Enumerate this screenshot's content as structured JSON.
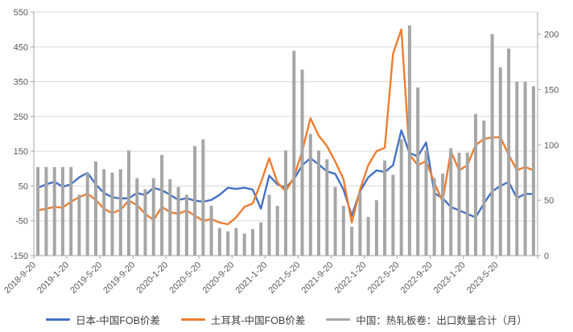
{
  "chart_data": {
    "type": "combo",
    "title": "",
    "x_monthly": [
      "2018-09",
      "2018-10",
      "2018-11",
      "2018-12",
      "2019-01",
      "2019-02",
      "2019-03",
      "2019-04",
      "2019-05",
      "2019-06",
      "2019-07",
      "2019-08",
      "2019-09",
      "2019-10",
      "2019-11",
      "2019-12",
      "2020-01",
      "2020-02",
      "2020-03",
      "2020-04",
      "2020-05",
      "2020-06",
      "2020-07",
      "2020-08",
      "2020-09",
      "2020-10",
      "2020-11",
      "2020-12",
      "2021-01",
      "2021-02",
      "2021-03",
      "2021-04",
      "2021-05",
      "2021-06",
      "2021-07",
      "2021-08",
      "2021-09",
      "2021-10",
      "2021-11",
      "2021-12",
      "2022-01",
      "2022-02",
      "2022-03",
      "2022-04",
      "2022-05",
      "2022-06",
      "2022-07",
      "2022-08",
      "2022-09",
      "2022-10",
      "2022-11",
      "2022-12",
      "2023-01",
      "2023-02",
      "2023-03",
      "2023-04",
      "2023-05",
      "2023-06",
      "2023-07",
      "2023-08",
      "2023-09"
    ],
    "x_tick_labels": [
      "2018-9-20",
      "2019-1-20",
      "2019-5-20",
      "2019-9-20",
      "2020-1-20",
      "2020-5-20",
      "2020-9-20",
      "2021-1-20",
      "2021-5-20",
      "2021-9-20",
      "2022-1-20",
      "2022-5-20",
      "2022-9-20",
      "2023-1-20",
      "2023-5-20"
    ],
    "x_tick_every": 4,
    "series": [
      {
        "name": "日本-中国FOB价差",
        "type": "line",
        "axis": "left",
        "color": "#4472C4",
        "values": [
          45,
          55,
          62,
          48,
          55,
          75,
          88,
          55,
          30,
          18,
          14,
          15,
          30,
          24,
          45,
          38,
          25,
          10,
          15,
          8,
          5,
          10,
          25,
          45,
          42,
          45,
          40,
          -15,
          80,
          55,
          45,
          70,
          110,
          130,
          112,
          92,
          85,
          40,
          -35,
          35,
          75,
          95,
          90,
          110,
          210,
          145,
          135,
          175,
          30,
          15,
          -10,
          -20,
          -30,
          -40,
          0,
          35,
          50,
          62,
          15,
          28,
          27
        ]
      },
      {
        "name": "土耳其-中国FOB价差",
        "type": "line",
        "axis": "left",
        "color": "#ED7D31",
        "values": [
          -20,
          -15,
          -10,
          -12,
          5,
          18,
          28,
          10,
          -15,
          -28,
          -18,
          8,
          -5,
          -30,
          -48,
          -10,
          -25,
          -30,
          -20,
          -35,
          -50,
          -45,
          -55,
          -60,
          -40,
          -10,
          0,
          60,
          130,
          60,
          35,
          75,
          150,
          245,
          195,
          165,
          120,
          70,
          -55,
          40,
          110,
          150,
          160,
          430,
          500,
          140,
          110,
          122,
          60,
          5,
          150,
          95,
          110,
          168,
          185,
          190,
          190,
          140,
          95,
          105,
          95
        ]
      },
      {
        "name": "中国：热轧板卷：出口数量合计（月）",
        "type": "bar",
        "axis": "right",
        "color": "#A6A6A6",
        "values": [
          80,
          80,
          80,
          80,
          80,
          55,
          75,
          85,
          78,
          75,
          78,
          95,
          70,
          60,
          70,
          91,
          69,
          62,
          55,
          99,
          105,
          45,
          25,
          22,
          25,
          20,
          24,
          30,
          55,
          45,
          95,
          185,
          168,
          110,
          95,
          87,
          62,
          45,
          26,
          57,
          35,
          50,
          86,
          73,
          105,
          208,
          152,
          95,
          70,
          74,
          97,
          93,
          93,
          128,
          122,
          200,
          170,
          187,
          157,
          157,
          153
        ]
      }
    ],
    "left_axis": {
      "min": -150,
      "max": 550,
      "tick_step": 100,
      "tick_labels": [
        "550",
        "450",
        "350",
        "250",
        "150",
        "50",
        "-50",
        "-150"
      ]
    },
    "right_axis": {
      "min": 0,
      "max": 220,
      "tick_values": [
        0,
        50,
        100,
        150,
        200
      ],
      "tick_labels": [
        "0",
        "50",
        "100",
        "150",
        "200"
      ]
    },
    "grid": true,
    "legend_position": "bottom"
  },
  "legend": {
    "items": [
      {
        "label": "日本-中国FOB价差",
        "color": "#4472C4"
      },
      {
        "label": "土耳其-中国FOB价差",
        "color": "#ED7D31"
      },
      {
        "label": "中国：热轧板卷：出口数量合计（月）",
        "color": "#A6A6A6"
      }
    ]
  },
  "style_colors": {
    "grid": "#D9D9D9",
    "axis_line": "#A6A6A6",
    "tick_label": "#595959"
  }
}
